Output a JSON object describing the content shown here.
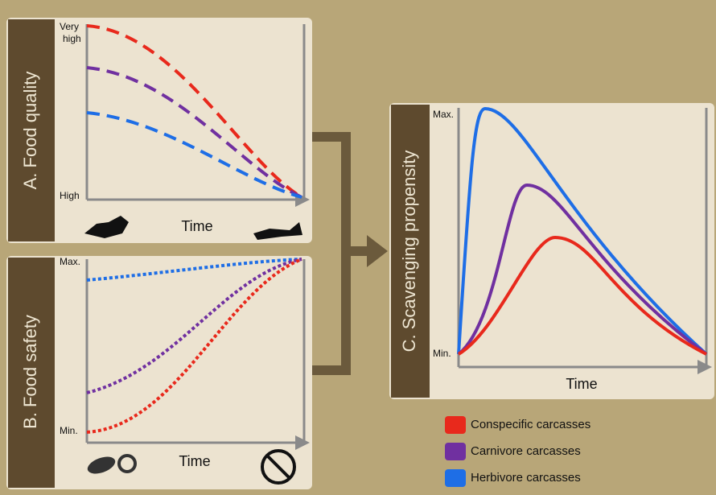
{
  "panels": {
    "a": {
      "label": "A. Food quality",
      "y_top_lines": [
        "Very",
        "high"
      ],
      "y_bottom": "High",
      "x_label": "Time"
    },
    "b": {
      "label": "B. Food safety",
      "y_top": "Max.",
      "y_bottom": "Min.",
      "x_label": "Time"
    },
    "c": {
      "label": "C. Scavenging propensity",
      "y_top": "Max.",
      "y_bottom": "Min.",
      "x_label": "Time"
    }
  },
  "legend": [
    {
      "name": "Conspecific carcasses",
      "color": "#e8291c"
    },
    {
      "name": "Carnivore carcasses",
      "color": "#7030a0"
    },
    {
      "name": "Herbivore carcasses",
      "color": "#1e6ee6"
    }
  ]
}
